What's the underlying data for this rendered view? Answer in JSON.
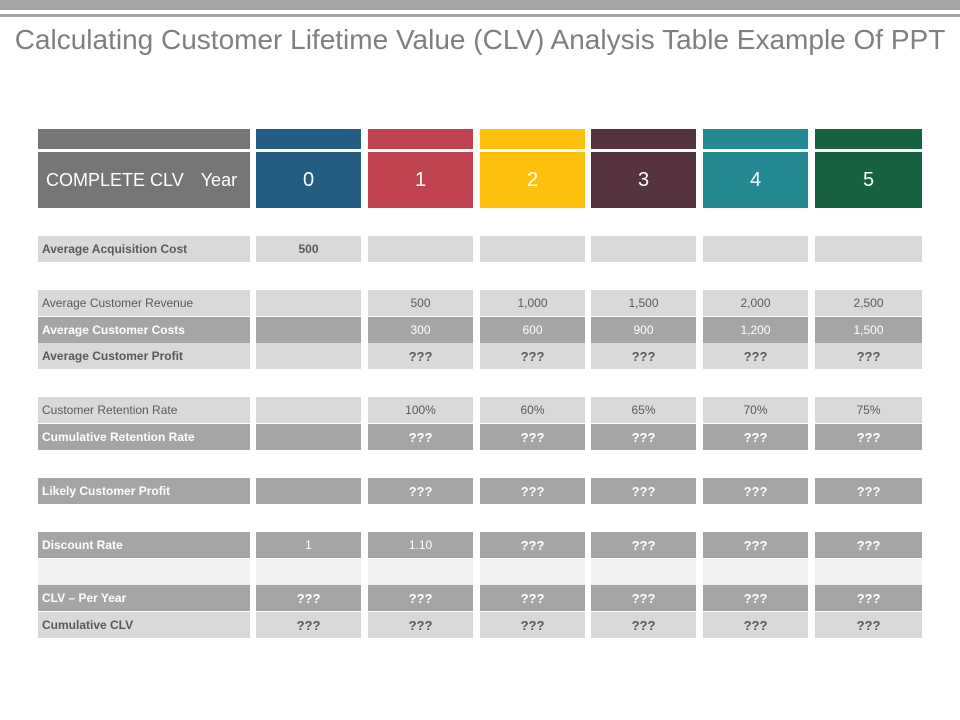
{
  "title": "Calculating Customer Lifetime Value (CLV) Analysis Table Example Of PPT",
  "header": {
    "label": "COMPLETE CLV",
    "year_label": "Year",
    "years": [
      "0",
      "1",
      "2",
      "3",
      "4",
      "5"
    ]
  },
  "colors": {
    "label_col": "#767676",
    "year_0": "#245d82",
    "year_1": "#c0444f",
    "year_2": "#fdc10d",
    "year_3": "#55333f",
    "year_4": "#238a93",
    "year_5": "#166240"
  },
  "rows": [
    {
      "label": "Average Acquisition Cost",
      "values": [
        "500",
        "",
        "",
        "",
        "",
        ""
      ]
    },
    {
      "label": "Average Customer Revenue",
      "values": [
        "",
        "500",
        "1,000",
        "1,500",
        "2,000",
        "2,500"
      ]
    },
    {
      "label": "Average Customer Costs",
      "values": [
        "",
        "300",
        "600",
        "900",
        "1,200",
        "1,500"
      ]
    },
    {
      "label": "Average Customer Profit",
      "values": [
        "",
        "???",
        "???",
        "???",
        "???",
        "???"
      ]
    },
    {
      "label": "Customer Retention Rate",
      "values": [
        "",
        "100%",
        "60%",
        "65%",
        "70%",
        "75%"
      ]
    },
    {
      "label": "Cumulative Retention Rate",
      "values": [
        "",
        "???",
        "???",
        "???",
        "???",
        "???"
      ]
    },
    {
      "label": "Likely Customer Profit",
      "values": [
        "",
        "???",
        "???",
        "???",
        "???",
        "???"
      ]
    },
    {
      "label": "Discount Rate",
      "values": [
        "1",
        "1.10",
        "???",
        "???",
        "???",
        "???"
      ]
    },
    {
      "label": "",
      "values": [
        "",
        "",
        "",
        "",
        "",
        ""
      ]
    },
    {
      "label": "CLV – Per Year",
      "values": [
        "???",
        "???",
        "???",
        "???",
        "???",
        "???"
      ]
    },
    {
      "label": "Cumulative CLV",
      "values": [
        "???",
        "???",
        "???",
        "???",
        "???",
        "???"
      ]
    }
  ]
}
